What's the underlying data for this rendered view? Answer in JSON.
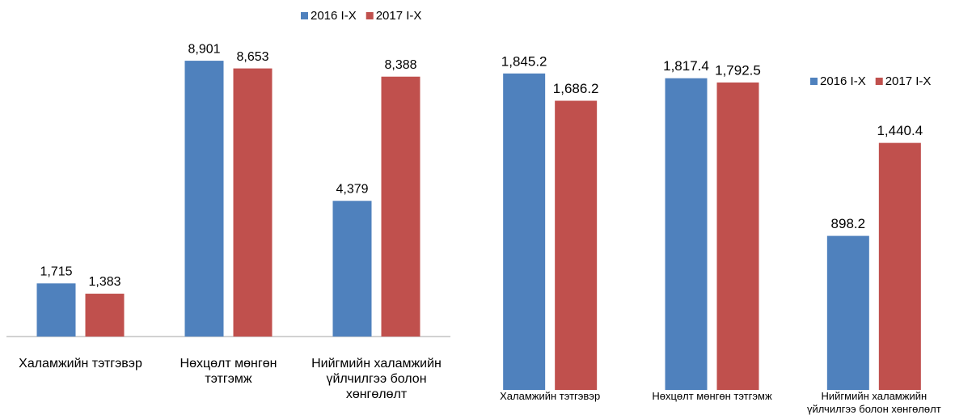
{
  "chart_data": [
    {
      "type": "bar",
      "categories": [
        "Халамжийн тэтгэвэр",
        "Нөхцөлт мөнгөн тэтгэмж",
        "Нийгмийн халамжийн үйлчилгээ болон хөнгөлөлт"
      ],
      "series": [
        {
          "name": "2016 I-X",
          "color": "#4f81bd",
          "values": [
            1715,
            8901,
            4379
          ],
          "value_labels": [
            "1,715",
            "8,901",
            "4,379"
          ]
        },
        {
          "name": "2017 I-X",
          "color": "#c0504d",
          "values": [
            1383,
            8653,
            8388
          ],
          "value_labels": [
            "1,383",
            "8,653",
            "8,388"
          ]
        }
      ],
      "ylim": [
        0,
        10000
      ]
    },
    {
      "type": "bar",
      "categories": [
        "Халамжийн тэтгэвэр",
        "Нөхцөлт мөнгөн тэтгэмж",
        "Нийгмийн халамжийн үйлчилгээ болон хөнгөлөлт"
      ],
      "series": [
        {
          "name": "2016 I-X",
          "color": "#4f81bd",
          "values": [
            1845.2,
            1817.4,
            898.2
          ],
          "value_labels": [
            "1,845.2",
            "1,817.4",
            "898.2"
          ]
        },
        {
          "name": "2017 I-X",
          "color": "#c0504d",
          "values": [
            1686.2,
            1792.5,
            1440.4
          ],
          "value_labels": [
            "1,686.2",
            "1,792.5",
            "1,440.4"
          ]
        }
      ],
      "ylim": [
        0,
        2000
      ]
    }
  ]
}
